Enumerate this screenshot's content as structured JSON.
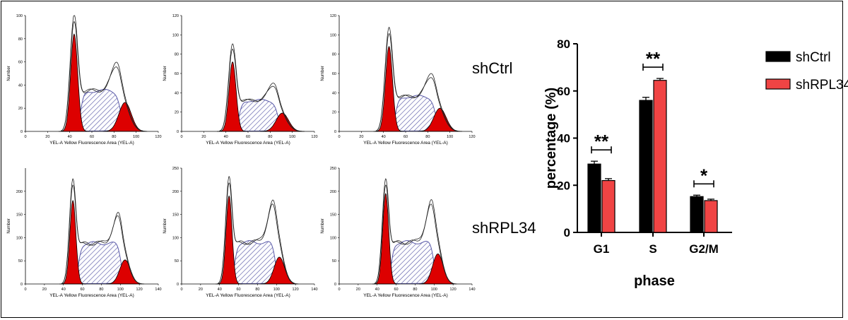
{
  "histograms": {
    "x_label": "YEL-A Yellow Fluorescence Area (YEL-A)",
    "y_label": "Number",
    "panels": [
      {
        "row": 0,
        "ymax": 100,
        "yticks": [
          "0",
          "20",
          "40",
          "60",
          "80",
          "100"
        ],
        "xticks": [
          "0",
          "20",
          "40",
          "60",
          "80",
          "100",
          "120"
        ],
        "xmax": 120,
        "g1": 44,
        "g2": 90,
        "g1_peak": 84,
        "g2_peak": 25,
        "s_level": 35,
        "total_peak": 100,
        "g2_total": 46
      },
      {
        "row": 0,
        "ymax": 120,
        "yticks": [
          "0",
          "20",
          "40",
          "60",
          "80",
          "100",
          "120"
        ],
        "xticks": [
          "0",
          "20",
          "40",
          "60",
          "80",
          "100",
          "120"
        ],
        "xmax": 120,
        "g1": 46,
        "g2": 91,
        "g1_peak": 72,
        "g2_peak": 19,
        "s_level": 32,
        "total_peak": 90,
        "g2_total": 37
      },
      {
        "row": 0,
        "ymax": 120,
        "yticks": [
          "0",
          "20",
          "40",
          "60",
          "80",
          "100",
          "120"
        ],
        "xticks": [
          "0",
          "20",
          "40",
          "60",
          "80",
          "100",
          "120"
        ],
        "xmax": 120,
        "g1": 45,
        "g2": 91,
        "g1_peak": 88,
        "g2_peak": 24,
        "s_level": 36,
        "total_peak": 107,
        "g2_total": 46
      },
      {
        "row": 1,
        "ymax": 250,
        "yticks": [
          "0",
          "50",
          "100",
          "150",
          "200"
        ],
        "xticks": [
          "0",
          "20",
          "40",
          "60",
          "80",
          "100",
          "120",
          "140"
        ],
        "xmax": 140,
        "g1": 50,
        "g2": 105,
        "g1_peak": 180,
        "g2_peak": 52,
        "s_level": 88,
        "total_peak": 225,
        "g2_total": 120
      },
      {
        "row": 1,
        "ymax": 250,
        "yticks": [
          "0",
          "50",
          "100",
          "150",
          "200",
          "250"
        ],
        "xticks": [
          "0",
          "20",
          "40",
          "60",
          "80",
          "100",
          "120",
          "140"
        ],
        "xmax": 140,
        "g1": 50,
        "g2": 103,
        "g1_peak": 190,
        "g2_peak": 58,
        "s_level": 90,
        "total_peak": 230,
        "g2_total": 150
      },
      {
        "row": 1,
        "ymax": 250,
        "yticks": [
          "0",
          "50",
          "100",
          "150",
          "200",
          "250"
        ],
        "xticks": [
          "0",
          "20",
          "40",
          "60",
          "80",
          "100",
          "120",
          "140"
        ],
        "xmax": 140,
        "g1": 49,
        "g2": 104,
        "g1_peak": 195,
        "g2_peak": 65,
        "s_level": 90,
        "total_peak": 225,
        "g2_total": 150
      }
    ]
  },
  "row_labels": [
    "shCtrl",
    "shRPL34"
  ],
  "chart_data": {
    "type": "bar",
    "categories": [
      "G1",
      "S",
      "G2/M"
    ],
    "series": [
      {
        "name": "shCtrl",
        "values": [
          29,
          56,
          15.2
        ],
        "errors": [
          1.2,
          1.3,
          0.6
        ],
        "color": "#000000"
      },
      {
        "name": "shRPL34",
        "values": [
          22,
          64.5,
          13.5
        ],
        "errors": [
          0.8,
          0.8,
          0.6
        ],
        "color": "#f04444"
      }
    ],
    "xlabel": "phase",
    "ylabel": "percentage (%)",
    "ylim": [
      0,
      80
    ],
    "yticks": [
      "0",
      "20",
      "40",
      "60",
      "80"
    ],
    "significance": [
      "**",
      "**",
      "*"
    ],
    "legend_position": "right"
  },
  "colors": {
    "red_peak": "#dd0000",
    "s_phase_hatch": "#5a5aa8",
    "bar_ctrl": "#000000",
    "bar_rpl34": "#f04444"
  }
}
